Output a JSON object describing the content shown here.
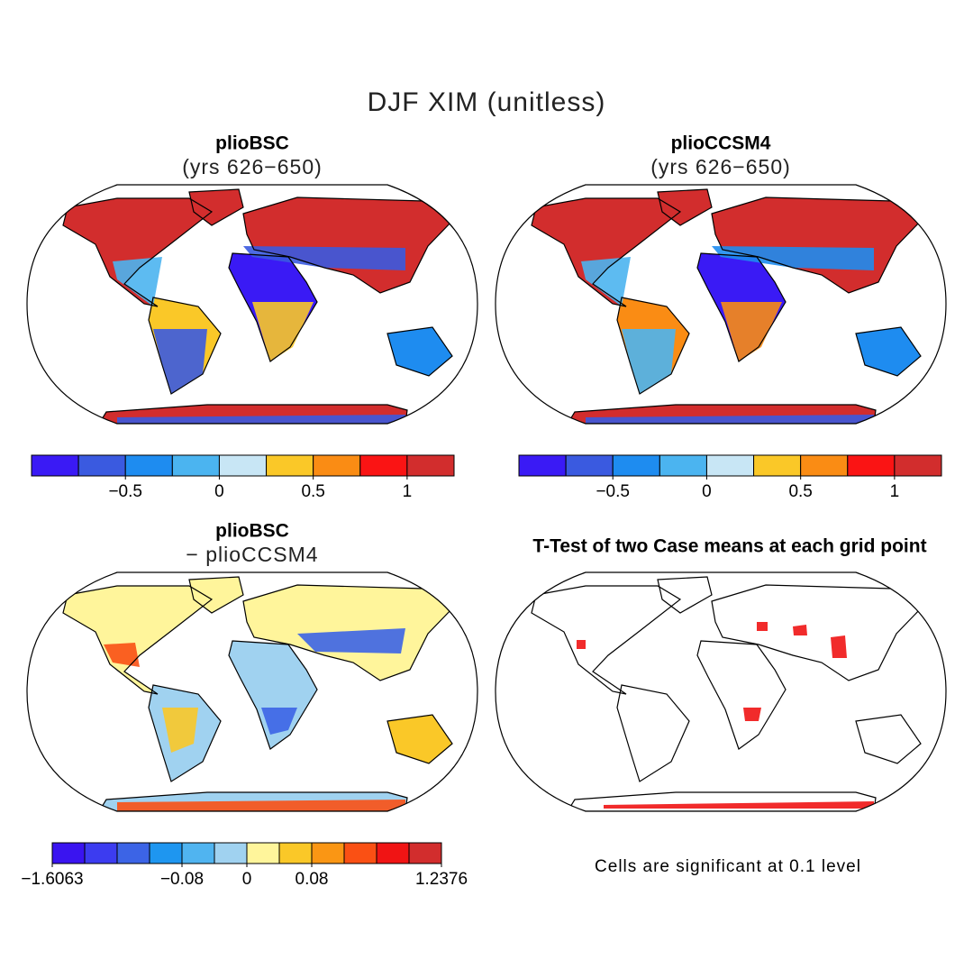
{
  "title": "DJF XIM (unitless)",
  "panels": [
    {
      "title": "plioBSC",
      "subtitle": "(yrs 626−650)",
      "colorbar": {
        "colors": [
          "#3a1af5",
          "#3a5ae0",
          "#1e8cf0",
          "#4bb4f0",
          "#c8e6f5",
          "#fac828",
          "#fa8c14",
          "#fa1414",
          "#d22d2d"
        ],
        "boundaries": [
          null,
          null,
          {
            "value": -0.5,
            "label": "−0.5"
          },
          null,
          0,
          null,
          0.5,
          null,
          1,
          null
        ]
      }
    },
    {
      "title": "plioCCSM4",
      "subtitle": "(yrs 626−650)",
      "colorbar": {
        "colors": [
          "#3a1af5",
          "#3a5ae0",
          "#1e8cf0",
          "#4bb4f0",
          "#c8e6f5",
          "#fac828",
          "#fa8c14",
          "#fa1414",
          "#d22d2d"
        ],
        "boundaries": [
          null,
          null,
          {
            "value": -0.5,
            "label": "−0.5"
          },
          null,
          0,
          null,
          0.5,
          null,
          1,
          null
        ]
      }
    },
    {
      "title": "plioBSC",
      "subtitle": "− plioCCSM4",
      "colorbar": {
        "colors": [
          "#3a14f0",
          "#3c3cf0",
          "#3c64e6",
          "#1e96f0",
          "#50b4f0",
          "#a0d2f0",
          "#fff59b",
          "#fac828",
          "#fa9614",
          "#fa5014",
          "#f01414",
          "#d22d2d"
        ],
        "boundaries": [
          {
            "value": -1.6063,
            "label": "−1.6063"
          },
          null,
          null,
          null,
          {
            "value": -0.08,
            "label": "−0.08"
          },
          null,
          0,
          null,
          0.08,
          null,
          null,
          null,
          1.2376
        ]
      }
    },
    {
      "title": "T-Test of two Case means at each grid point",
      "note": "Cells are significant at 0.1 level"
    }
  ]
}
